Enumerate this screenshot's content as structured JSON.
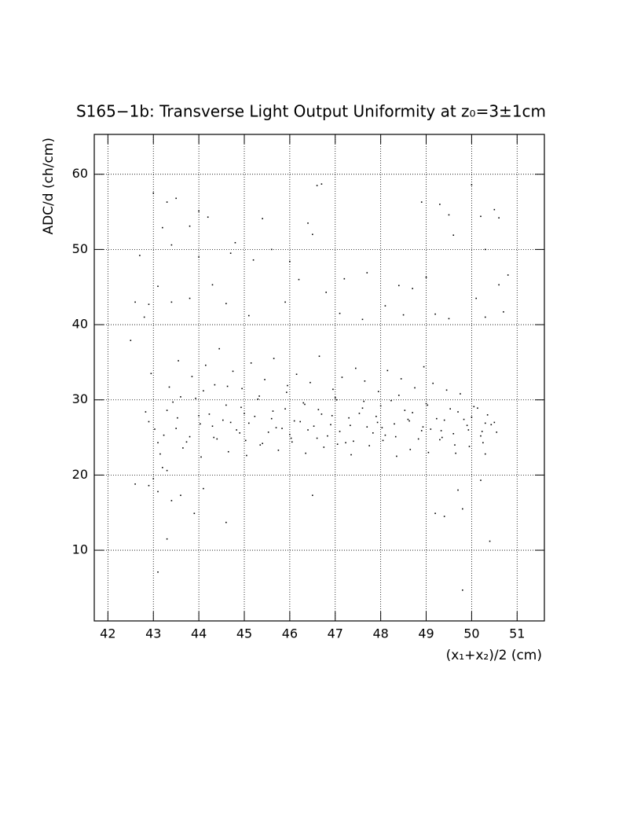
{
  "chart_data": {
    "type": "scatter",
    "title": "S165−1b: Transverse Light Output Uniformity at z₀=3±1cm",
    "x_label": "(x₁+x₂)/2 (cm)",
    "y_label": "ADC/d (ch/cm)",
    "color": "#000000",
    "grid": true,
    "xlim": [
      41.7,
      51.6
    ],
    "ylim": [
      0.6,
      65.3
    ],
    "xticks": [
      42,
      43,
      44,
      45,
      46,
      47,
      48,
      49,
      50,
      51
    ],
    "yticks": [
      10,
      20,
      30,
      40,
      50,
      60
    ],
    "x": [
      43.0,
      43.3,
      43.5,
      44.0,
      44.2,
      45.4,
      46.5,
      46.4,
      46.7,
      46.6,
      48.9,
      49.3,
      49.5,
      50.0,
      50.2,
      50.5,
      50.6,
      43.8,
      43.2,
      43.4,
      44.0,
      44.7,
      44.8,
      45.2,
      45.6,
      46.0,
      46.2,
      47.2,
      47.7,
      48.4,
      48.7,
      49.0,
      49.6,
      50.3,
      50.6,
      50.8,
      42.7,
      43.1,
      42.6,
      42.9,
      43.4,
      43.8,
      44.3,
      44.6,
      45.1,
      45.9,
      46.8,
      47.1,
      47.6,
      48.1,
      48.5,
      49.2,
      49.5,
      50.1,
      50.3,
      50.7,
      42.5,
      42.8,
      42.6,
      42.9,
      43.1,
      43.2,
      43.3,
      43.4,
      43.3,
      43.1,
      43.6,
      43.9,
      44.1,
      44.6,
      46.5,
      49.7,
      49.8,
      49.2,
      49.4,
      50.2,
      50.4,
      49.8,
      50.3,
      43.0,
      42.9,
      43.1,
      43.3,
      43.5,
      43.6,
      43.8,
      44.0,
      44.1,
      44.3,
      44.4,
      44.6,
      44.7,
      44.9,
      45.0,
      45.1,
      45.3,
      45.4,
      45.6,
      45.7,
      45.9,
      46.0,
      46.1,
      46.3,
      46.4,
      46.6,
      46.7,
      46.9,
      47.0,
      47.1,
      47.3,
      47.4,
      47.6,
      47.7,
      47.9,
      48.0,
      48.1,
      48.3,
      48.4,
      48.6,
      48.7,
      48.9,
      49.0,
      49.1,
      49.3,
      49.4,
      49.6,
      49.7,
      49.9,
      50.0,
      50.2,
      50.3,
      50.5,
      42.95,
      43.15,
      43.35,
      43.55,
      43.65,
      43.85,
      44.05,
      44.15,
      44.35,
      44.45,
      44.65,
      44.75,
      44.95,
      45.05,
      45.15,
      45.35,
      45.45,
      45.65,
      45.75,
      45.95,
      46.05,
      46.15,
      46.35,
      46.45,
      46.65,
      46.75,
      46.95,
      47.05,
      47.15,
      47.35,
      47.45,
      47.65,
      47.75,
      47.95,
      48.05,
      48.15,
      48.35,
      48.45,
      48.65,
      48.75,
      48.95,
      49.05,
      49.15,
      49.35,
      49.45,
      49.65,
      49.75,
      49.95,
      50.05,
      50.25,
      50.35,
      50.55,
      42.83,
      43.03,
      43.23,
      43.43,
      43.53,
      43.73,
      43.93,
      44.03,
      44.23,
      44.33,
      44.53,
      44.63,
      44.83,
      44.93,
      45.03,
      45.23,
      45.33,
      45.53,
      45.63,
      45.83,
      45.93,
      46.03,
      46.23,
      46.33,
      46.53,
      46.63,
      46.83,
      46.93,
      47.03,
      47.23,
      47.33,
      47.53,
      47.63,
      47.83,
      47.93,
      48.03,
      48.23,
      48.33,
      48.53,
      48.63,
      48.83,
      48.93,
      49.03,
      49.23,
      49.33,
      49.53,
      49.63,
      49.83,
      49.93,
      50.13,
      50.23,
      50.43
    ],
    "values": [
      57.5,
      56.3,
      56.8,
      55.1,
      54.3,
      54.1,
      52.0,
      53.5,
      58.7,
      58.5,
      56.3,
      56.0,
      54.6,
      58.6,
      54.4,
      55.3,
      54.2,
      53.1,
      52.9,
      50.6,
      49.0,
      49.5,
      50.9,
      48.6,
      50.0,
      48.4,
      46.0,
      46.1,
      46.9,
      45.2,
      44.8,
      46.3,
      51.9,
      50.0,
      45.3,
      46.6,
      49.2,
      45.1,
      43.0,
      42.7,
      43.0,
      43.5,
      45.3,
      42.8,
      41.2,
      43.0,
      44.3,
      41.5,
      40.7,
      42.5,
      41.3,
      41.4,
      40.8,
      43.5,
      41.0,
      41.7,
      37.9,
      41.0,
      18.8,
      18.6,
      17.8,
      21.0,
      20.6,
      16.6,
      11.5,
      7.1,
      17.3,
      14.9,
      18.2,
      13.7,
      17.3,
      18.0,
      15.5,
      14.9,
      14.5,
      19.3,
      11.2,
      4.7,
      22.8,
      19.5,
      27.1,
      24.3,
      28.6,
      26.2,
      30.4,
      25.1,
      27.9,
      31.2,
      26.5,
      24.8,
      29.3,
      27.0,
      25.6,
      28.2,
      26.9,
      30.1,
      24.2,
      27.5,
      26.3,
      28.8,
      25.4,
      27.2,
      29.6,
      26.0,
      24.9,
      28.1,
      26.7,
      30.3,
      25.8,
      27.6,
      24.5,
      28.9,
      26.4,
      27.8,
      29.2,
      25.3,
      26.8,
      30.6,
      27.4,
      28.3,
      25.9,
      29.5,
      26.1,
      24.7,
      27.3,
      25.5,
      28.4,
      26.6,
      27.7,
      25.2,
      26.9,
      27.0,
      33.5,
      22.8,
      31.7,
      35.2,
      23.6,
      33.1,
      22.4,
      34.6,
      32.0,
      36.8,
      23.1,
      33.8,
      31.5,
      22.6,
      34.9,
      24.0,
      32.7,
      35.5,
      23.3,
      31.9,
      24.4,
      33.4,
      22.9,
      32.3,
      35.8,
      23.7,
      31.4,
      24.1,
      33.0,
      22.7,
      34.2,
      32.5,
      23.9,
      31.1,
      24.6,
      33.9,
      22.5,
      32.8,
      23.4,
      31.6,
      34.4,
      23.0,
      32.2,
      25.0,
      31.3,
      22.9,
      30.8,
      23.8,
      29.1,
      24.3,
      28.0,
      25.7,
      28.4,
      26.1,
      25.3,
      29.7,
      27.6,
      24.4,
      30.2,
      26.8,
      28.1,
      25.0,
      27.3,
      31.8,
      26.0,
      29.0,
      24.6,
      27.8,
      30.5,
      25.7,
      28.5,
      26.2,
      31.0,
      24.9,
      27.1,
      29.4,
      26.5,
      28.7,
      25.2,
      27.9,
      30.0,
      24.3,
      26.6,
      28.2,
      29.8,
      25.6,
      27.0,
      26.3,
      29.9,
      25.1,
      28.6,
      27.2,
      24.8,
      26.4,
      29.3,
      27.5,
      25.9,
      28.8,
      24.0,
      27.4,
      26.0,
      28.9,
      25.8,
      26.7
    ]
  }
}
